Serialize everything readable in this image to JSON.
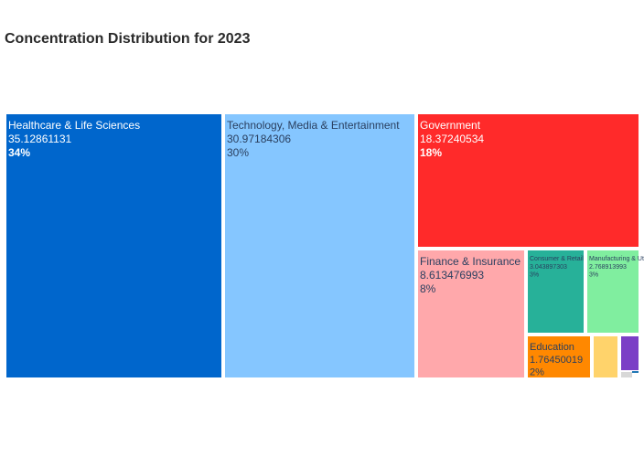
{
  "chart_data": {
    "type": "treemap",
    "title": "Concentration Distribution for 2023",
    "items": [
      {
        "label": "Healthcare & Life Sciences",
        "value_text": "35.12861131",
        "value": 35.12861131,
        "percent": "34%",
        "color": "#0066cc",
        "text_color": "#ffffff",
        "bold": true
      },
      {
        "label": "Technology, Media & Entertainment",
        "value_text": "30.97184306",
        "value": 30.97184306,
        "percent": "30%",
        "color": "#85c6ff",
        "text_color": "#2a3f5f",
        "bold": false
      },
      {
        "label": "Government",
        "value_text": "18.37240534",
        "value": 18.37240534,
        "percent": "18%",
        "color": "#ff2a2a",
        "text_color": "#ffffff",
        "bold": true
      },
      {
        "label": "Finance & Insurance",
        "value_text": "8.613476993",
        "value": 8.613476993,
        "percent": "8%",
        "color": "#ffa8ab",
        "text_color": "#2a3f5f",
        "bold": false
      },
      {
        "label": "Consumer & Retail",
        "value_text": "3.043897303",
        "value": 3.043897303,
        "percent": "3%",
        "color": "#27b199",
        "text_color": "#2a3f5f",
        "bold": false
      },
      {
        "label": "Manufacturing & Utility",
        "value_text": "2.768913993",
        "value": 2.768913993,
        "percent": "3%",
        "color": "#80ee9f",
        "text_color": "#2a3f5f",
        "bold": false
      },
      {
        "label": "Education",
        "value_text": "1.76450019",
        "value": 1.76450019,
        "percent": "2%",
        "color": "#ff8800",
        "text_color": "#2a3f5f",
        "bold": false
      },
      {
        "label": "",
        "value_text": "",
        "value": 0.9,
        "percent": "",
        "color": "#ffd36b",
        "text_color": "#2a3f5f",
        "bold": false
      },
      {
        "label": "",
        "value_text": "",
        "value": 0.5,
        "percent": "",
        "color": "#7b3fc6",
        "text_color": "#ffffff",
        "bold": false
      },
      {
        "label": "",
        "value_text": "",
        "value": 0.1,
        "percent": "",
        "color": "#d8d8d8",
        "text_color": "#2a3f5f",
        "bold": false
      },
      {
        "label": "",
        "value_text": "",
        "value": 0.05,
        "percent": "",
        "color": "#1f77b4",
        "text_color": "#ffffff",
        "bold": false
      }
    ]
  }
}
